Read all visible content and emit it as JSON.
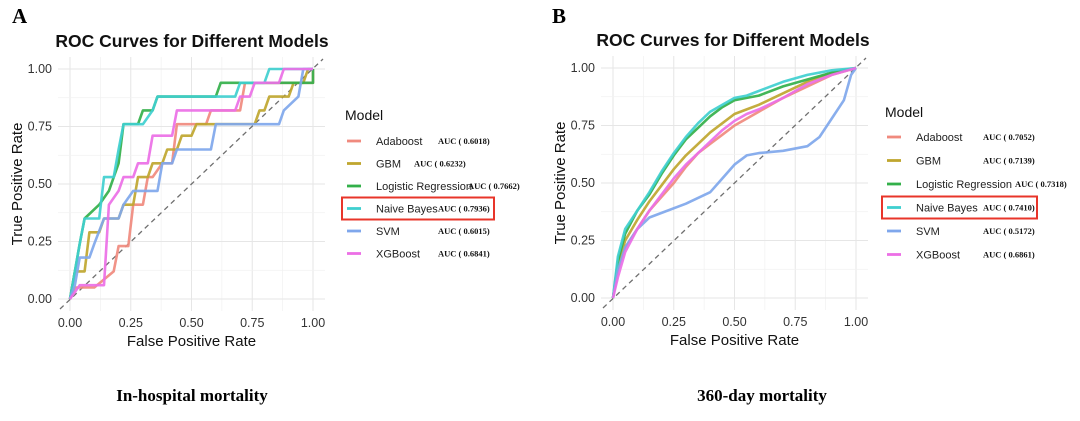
{
  "panels": [
    {
      "letter": "A",
      "caption": "In-hospital mortality"
    },
    {
      "letter": "B",
      "caption": "360-day mortality"
    }
  ],
  "colors": {
    "Adaboost": "#f08a7e",
    "GBM": "#bfa62f",
    "Logistic Regression": "#33b04a",
    "Naive Bayes": "#3fcfcf",
    "SVM": "#7fa7ec",
    "XGBoost": "#ec6fe6",
    "highlight_box": "#e8352a",
    "diagonal": "#6f6f6f",
    "grid": "#e6e6e6"
  },
  "chart_data": [
    {
      "type": "line",
      "title": "ROC Curves for Different Models",
      "xlabel": "False Positive Rate",
      "ylabel": "True Positive Rate",
      "xlim": [
        0,
        1
      ],
      "ylim": [
        0,
        1
      ],
      "xticks": [
        "0.00",
        "0.25",
        "0.50",
        "0.75",
        "1.00"
      ],
      "yticks": [
        "0.00",
        "0.25",
        "0.50",
        "0.75",
        "1.00"
      ],
      "grid": true,
      "legend_title": "Model",
      "legend_position": "right",
      "highlighted": "Naive Bayes",
      "reference_line": "diagonal",
      "series": [
        {
          "name": "Adaboost",
          "auc": "AUC ( 0.6018)",
          "points": [
            [
              0,
              0
            ],
            [
              0.02,
              0.05
            ],
            [
              0.1,
              0.05
            ],
            [
              0.18,
              0.12
            ],
            [
              0.2,
              0.23
            ],
            [
              0.24,
              0.23
            ],
            [
              0.26,
              0.41
            ],
            [
              0.3,
              0.41
            ],
            [
              0.32,
              0.53
            ],
            [
              0.34,
              0.53
            ],
            [
              0.38,
              0.59
            ],
            [
              0.42,
              0.59
            ],
            [
              0.44,
              0.76
            ],
            [
              0.56,
              0.76
            ],
            [
              0.58,
              0.82
            ],
            [
              0.7,
              0.82
            ],
            [
              0.72,
              0.94
            ],
            [
              1,
              0.94
            ],
            [
              1,
              1
            ]
          ]
        },
        {
          "name": "GBM",
          "auc": "AUC ( 0.6232)",
          "points": [
            [
              0,
              0
            ],
            [
              0.02,
              0.12
            ],
            [
              0.06,
              0.12
            ],
            [
              0.08,
              0.29
            ],
            [
              0.12,
              0.29
            ],
            [
              0.14,
              0.35
            ],
            [
              0.2,
              0.35
            ],
            [
              0.22,
              0.41
            ],
            [
              0.26,
              0.41
            ],
            [
              0.28,
              0.53
            ],
            [
              0.32,
              0.53
            ],
            [
              0.34,
              0.59
            ],
            [
              0.38,
              0.59
            ],
            [
              0.4,
              0.65
            ],
            [
              0.44,
              0.65
            ],
            [
              0.46,
              0.71
            ],
            [
              0.5,
              0.71
            ],
            [
              0.52,
              0.76
            ],
            [
              0.76,
              0.76
            ],
            [
              0.78,
              0.82
            ],
            [
              0.8,
              0.82
            ],
            [
              0.82,
              0.88
            ],
            [
              0.9,
              0.88
            ],
            [
              0.92,
              0.94
            ],
            [
              0.96,
              0.94
            ],
            [
              0.98,
              1
            ],
            [
              1,
              1
            ]
          ]
        },
        {
          "name": "Logistic Regression",
          "auc": "AUC ( 0.7662)",
          "points": [
            [
              0,
              0
            ],
            [
              0.02,
              0.12
            ],
            [
              0.04,
              0.24
            ],
            [
              0.06,
              0.35
            ],
            [
              0.12,
              0.41
            ],
            [
              0.16,
              0.47
            ],
            [
              0.2,
              0.59
            ],
            [
              0.22,
              0.76
            ],
            [
              0.28,
              0.76
            ],
            [
              0.3,
              0.82
            ],
            [
              0.34,
              0.82
            ],
            [
              0.36,
              0.88
            ],
            [
              0.6,
              0.88
            ],
            [
              0.62,
              0.94
            ],
            [
              1,
              0.94
            ],
            [
              1,
              1
            ]
          ]
        },
        {
          "name": "Naive Bayes",
          "auc": "AUC ( 0.7936)",
          "points": [
            [
              0,
              0
            ],
            [
              0.02,
              0.12
            ],
            [
              0.04,
              0.24
            ],
            [
              0.06,
              0.35
            ],
            [
              0.12,
              0.35
            ],
            [
              0.14,
              0.53
            ],
            [
              0.18,
              0.53
            ],
            [
              0.2,
              0.65
            ],
            [
              0.22,
              0.76
            ],
            [
              0.3,
              0.76
            ],
            [
              0.34,
              0.82
            ],
            [
              0.36,
              0.88
            ],
            [
              0.68,
              0.88
            ],
            [
              0.7,
              0.94
            ],
            [
              0.8,
              0.94
            ],
            [
              0.82,
              1
            ],
            [
              1,
              1
            ]
          ]
        },
        {
          "name": "SVM",
          "auc": "AUC ( 0.6015)",
          "points": [
            [
              0,
              0
            ],
            [
              0.02,
              0.06
            ],
            [
              0.04,
              0.18
            ],
            [
              0.08,
              0.18
            ],
            [
              0.1,
              0.24
            ],
            [
              0.14,
              0.35
            ],
            [
              0.2,
              0.35
            ],
            [
              0.22,
              0.41
            ],
            [
              0.26,
              0.47
            ],
            [
              0.36,
              0.47
            ],
            [
              0.38,
              0.59
            ],
            [
              0.42,
              0.59
            ],
            [
              0.44,
              0.65
            ],
            [
              0.58,
              0.65
            ],
            [
              0.6,
              0.76
            ],
            [
              0.86,
              0.76
            ],
            [
              0.88,
              0.82
            ],
            [
              0.94,
              0.88
            ],
            [
              0.96,
              1
            ],
            [
              1,
              1
            ]
          ]
        },
        {
          "name": "XGBoost",
          "auc": "AUC ( 0.6841)",
          "points": [
            [
              0,
              0
            ],
            [
              0.04,
              0.06
            ],
            [
              0.14,
              0.06
            ],
            [
              0.16,
              0.41
            ],
            [
              0.2,
              0.47
            ],
            [
              0.22,
              0.53
            ],
            [
              0.26,
              0.53
            ],
            [
              0.28,
              0.59
            ],
            [
              0.32,
              0.59
            ],
            [
              0.34,
              0.71
            ],
            [
              0.42,
              0.71
            ],
            [
              0.44,
              0.82
            ],
            [
              0.68,
              0.82
            ],
            [
              0.7,
              0.88
            ],
            [
              0.74,
              0.88
            ],
            [
              0.76,
              0.94
            ],
            [
              0.86,
              0.94
            ],
            [
              0.88,
              1
            ],
            [
              1,
              1
            ]
          ]
        }
      ]
    },
    {
      "type": "line",
      "title": "ROC Curves for Different Models",
      "xlabel": "False Positive Rate",
      "ylabel": "True Positive Rate",
      "xlim": [
        0,
        1
      ],
      "ylim": [
        0,
        1
      ],
      "xticks": [
        "0.00",
        "0.25",
        "0.50",
        "0.75",
        "1.00"
      ],
      "yticks": [
        "0.00",
        "0.25",
        "0.50",
        "0.75",
        "1.00"
      ],
      "grid": true,
      "legend_title": "Model",
      "legend_position": "right",
      "highlighted": "Naive Bayes",
      "reference_line": "diagonal",
      "series": [
        {
          "name": "Adaboost",
          "auc": "AUC ( 0.7052)",
          "points": [
            [
              0,
              0
            ],
            [
              0.02,
              0.12
            ],
            [
              0.05,
              0.22
            ],
            [
              0.1,
              0.3
            ],
            [
              0.15,
              0.38
            ],
            [
              0.2,
              0.44
            ],
            [
              0.25,
              0.5
            ],
            [
              0.3,
              0.57
            ],
            [
              0.35,
              0.63
            ],
            [
              0.4,
              0.67
            ],
            [
              0.45,
              0.71
            ],
            [
              0.5,
              0.75
            ],
            [
              0.55,
              0.78
            ],
            [
              0.6,
              0.81
            ],
            [
              0.7,
              0.87
            ],
            [
              0.8,
              0.92
            ],
            [
              0.9,
              0.97
            ],
            [
              1,
              1
            ]
          ]
        },
        {
          "name": "GBM",
          "auc": "AUC ( 0.7139)",
          "points": [
            [
              0,
              0
            ],
            [
              0.02,
              0.14
            ],
            [
              0.05,
              0.25
            ],
            [
              0.1,
              0.34
            ],
            [
              0.15,
              0.42
            ],
            [
              0.2,
              0.49
            ],
            [
              0.25,
              0.56
            ],
            [
              0.3,
              0.62
            ],
            [
              0.35,
              0.67
            ],
            [
              0.4,
              0.72
            ],
            [
              0.45,
              0.76
            ],
            [
              0.5,
              0.8
            ],
            [
              0.55,
              0.82
            ],
            [
              0.6,
              0.84
            ],
            [
              0.7,
              0.89
            ],
            [
              0.8,
              0.94
            ],
            [
              0.9,
              0.98
            ],
            [
              1,
              1
            ]
          ]
        },
        {
          "name": "Logistic Regression",
          "auc": "AUC ( 0.7318)",
          "points": [
            [
              0,
              0
            ],
            [
              0.02,
              0.16
            ],
            [
              0.05,
              0.28
            ],
            [
              0.1,
              0.38
            ],
            [
              0.15,
              0.45
            ],
            [
              0.2,
              0.54
            ],
            [
              0.25,
              0.62
            ],
            [
              0.3,
              0.69
            ],
            [
              0.35,
              0.74
            ],
            [
              0.4,
              0.79
            ],
            [
              0.45,
              0.83
            ],
            [
              0.5,
              0.86
            ],
            [
              0.55,
              0.87
            ],
            [
              0.6,
              0.88
            ],
            [
              0.7,
              0.92
            ],
            [
              0.8,
              0.95
            ],
            [
              0.9,
              0.98
            ],
            [
              1,
              1
            ]
          ]
        },
        {
          "name": "Naive Bayes",
          "auc": "AUC ( 0.7410)",
          "points": [
            [
              0,
              0
            ],
            [
              0.02,
              0.18
            ],
            [
              0.05,
              0.3
            ],
            [
              0.1,
              0.38
            ],
            [
              0.15,
              0.46
            ],
            [
              0.2,
              0.55
            ],
            [
              0.25,
              0.63
            ],
            [
              0.3,
              0.7
            ],
            [
              0.35,
              0.76
            ],
            [
              0.4,
              0.81
            ],
            [
              0.45,
              0.84
            ],
            [
              0.5,
              0.87
            ],
            [
              0.55,
              0.88
            ],
            [
              0.6,
              0.9
            ],
            [
              0.7,
              0.94
            ],
            [
              0.8,
              0.97
            ],
            [
              0.9,
              0.99
            ],
            [
              1,
              1
            ]
          ]
        },
        {
          "name": "SVM",
          "auc": "AUC ( 0.5172)",
          "points": [
            [
              0,
              0
            ],
            [
              0.02,
              0.12
            ],
            [
              0.05,
              0.22
            ],
            [
              0.1,
              0.3
            ],
            [
              0.15,
              0.35
            ],
            [
              0.2,
              0.37
            ],
            [
              0.3,
              0.41
            ],
            [
              0.4,
              0.46
            ],
            [
              0.45,
              0.52
            ],
            [
              0.5,
              0.58
            ],
            [
              0.55,
              0.62
            ],
            [
              0.6,
              0.63
            ],
            [
              0.7,
              0.64
            ],
            [
              0.8,
              0.66
            ],
            [
              0.85,
              0.7
            ],
            [
              0.9,
              0.78
            ],
            [
              0.95,
              0.86
            ],
            [
              0.98,
              0.97
            ],
            [
              1,
              1
            ]
          ]
        },
        {
          "name": "XGBoost",
          "auc": "AUC ( 0.6861)",
          "points": [
            [
              0,
              0
            ],
            [
              0.02,
              0.09
            ],
            [
              0.05,
              0.2
            ],
            [
              0.1,
              0.3
            ],
            [
              0.15,
              0.38
            ],
            [
              0.2,
              0.45
            ],
            [
              0.25,
              0.52
            ],
            [
              0.3,
              0.58
            ],
            [
              0.35,
              0.63
            ],
            [
              0.4,
              0.68
            ],
            [
              0.45,
              0.73
            ],
            [
              0.5,
              0.77
            ],
            [
              0.55,
              0.8
            ],
            [
              0.6,
              0.82
            ],
            [
              0.7,
              0.87
            ],
            [
              0.8,
              0.93
            ],
            [
              0.9,
              0.97
            ],
            [
              1,
              1
            ]
          ]
        }
      ]
    }
  ]
}
